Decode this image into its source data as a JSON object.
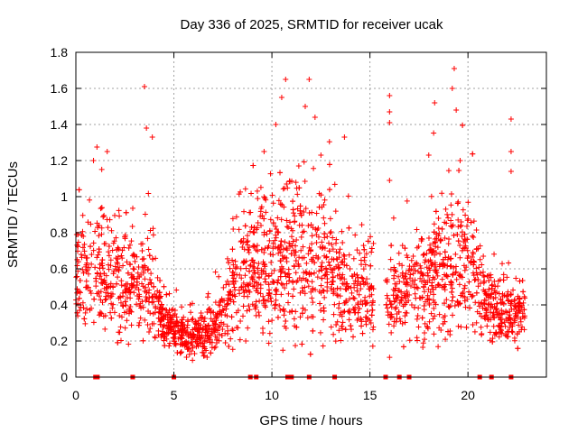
{
  "chart_data": {
    "type": "scatter",
    "title": "Day 336 of 2025, SRMTID for receiver ucak",
    "xlabel": "GPS time / hours",
    "ylabel": "SRMTID / TECUs",
    "xlim": [
      0,
      24
    ],
    "ylim": [
      0,
      1.8
    ],
    "x_ticks": [
      0,
      5,
      10,
      15,
      20
    ],
    "y_ticks": [
      0,
      0.2,
      0.4,
      0.6,
      0.8,
      1,
      1.2,
      1.4,
      1.6,
      1.8
    ],
    "x_tick_labels": [
      "0",
      "5",
      "10",
      "15",
      "20"
    ],
    "y_tick_labels": [
      "0",
      "0.2",
      "0.4",
      "0.6",
      "0.8",
      "1",
      "1.2",
      "1.4",
      "1.6",
      "1.8"
    ],
    "grid": true,
    "marker": "plus",
    "color": "#ff0000",
    "data_gaps_hours": [
      [
        15.2,
        15.8
      ]
    ],
    "activity_envelope": [
      {
        "hour": 0.0,
        "median": 0.55,
        "spread": 0.22
      },
      {
        "hour": 1.0,
        "median": 0.6,
        "spread": 0.25
      },
      {
        "hour": 2.0,
        "median": 0.55,
        "spread": 0.22
      },
      {
        "hour": 3.0,
        "median": 0.5,
        "spread": 0.22
      },
      {
        "hour": 3.8,
        "median": 0.5,
        "spread": 0.2
      },
      {
        "hour": 4.5,
        "median": 0.3,
        "spread": 0.1
      },
      {
        "hour": 5.5,
        "median": 0.22,
        "spread": 0.07
      },
      {
        "hour": 6.5,
        "median": 0.22,
        "spread": 0.08
      },
      {
        "hour": 7.5,
        "median": 0.35,
        "spread": 0.12
      },
      {
        "hour": 8.5,
        "median": 0.6,
        "spread": 0.25
      },
      {
        "hour": 10.0,
        "median": 0.65,
        "spread": 0.28
      },
      {
        "hour": 11.5,
        "median": 0.7,
        "spread": 0.3
      },
      {
        "hour": 12.5,
        "median": 0.6,
        "spread": 0.28
      },
      {
        "hour": 14.0,
        "median": 0.45,
        "spread": 0.18
      },
      {
        "hour": 15.0,
        "median": 0.45,
        "spread": 0.15
      },
      {
        "hour": 16.0,
        "median": 0.45,
        "spread": 0.18
      },
      {
        "hour": 17.5,
        "median": 0.5,
        "spread": 0.2
      },
      {
        "hour": 19.0,
        "median": 0.6,
        "spread": 0.28
      },
      {
        "hour": 20.0,
        "median": 0.65,
        "spread": 0.25
      },
      {
        "hour": 21.0,
        "median": 0.4,
        "spread": 0.15
      },
      {
        "hour": 22.0,
        "median": 0.35,
        "spread": 0.12
      },
      {
        "hour": 22.9,
        "median": 0.35,
        "spread": 0.12
      }
    ],
    "high_outliers": [
      {
        "x": 3.5,
        "y": 1.61
      },
      {
        "x": 3.6,
        "y": 1.38
      },
      {
        "x": 3.9,
        "y": 1.33
      },
      {
        "x": 0.9,
        "y": 1.2
      },
      {
        "x": 1.6,
        "y": 1.25
      },
      {
        "x": 9.6,
        "y": 1.25
      },
      {
        "x": 10.2,
        "y": 1.4
      },
      {
        "x": 10.5,
        "y": 1.55
      },
      {
        "x": 10.7,
        "y": 1.65
      },
      {
        "x": 11.7,
        "y": 1.5
      },
      {
        "x": 11.9,
        "y": 1.65
      },
      {
        "x": 12.2,
        "y": 1.44
      },
      {
        "x": 12.5,
        "y": 1.23
      },
      {
        "x": 13.7,
        "y": 1.33
      },
      {
        "x": 16.0,
        "y": 1.56
      },
      {
        "x": 16.0,
        "y": 1.47
      },
      {
        "x": 16.0,
        "y": 1.41
      },
      {
        "x": 16.0,
        "y": 1.09
      },
      {
        "x": 18.0,
        "y": 1.23
      },
      {
        "x": 18.3,
        "y": 1.52
      },
      {
        "x": 19.2,
        "y": 1.6
      },
      {
        "x": 19.3,
        "y": 1.71
      },
      {
        "x": 19.4,
        "y": 1.48
      },
      {
        "x": 19.6,
        "y": 1.2
      },
      {
        "x": 22.2,
        "y": 1.43
      },
      {
        "x": 22.2,
        "y": 1.25
      },
      {
        "x": 22.2,
        "y": 1.14
      }
    ],
    "zero_markers_x": [
      1.0,
      1.1,
      2.9,
      5.0,
      8.9,
      9.2,
      10.8,
      11.0,
      11.9,
      13.2,
      15.8,
      16.5,
      17.0,
      20.6,
      21.2,
      22.2
    ]
  }
}
